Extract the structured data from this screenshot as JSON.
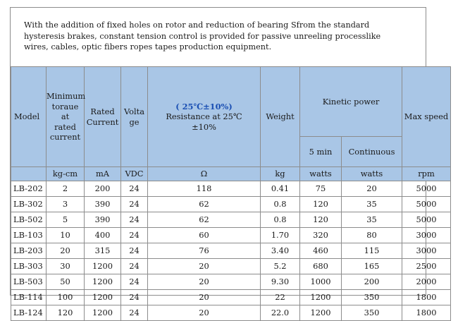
{
  "intro": {
    "line1": "With the addition of fixed holes on rotor and reduction of bearing Sfrom the standard",
    "line2": "hysteresis brakes, constant tension control is provided for passive unreeling processlike",
    "line3": "wires, cables, optic fibers ropes tapes production  equipment."
  },
  "headers": {
    "model": "Model",
    "min_torque_l1": "Minimum",
    "min_torque_l2": "toraue",
    "min_torque_l3": "at",
    "min_torque_l4": "rated",
    "min_torque_l5": "current",
    "rated_current_l1": "Rated",
    "rated_current_l2": "Current",
    "voltage_l1": "Volta",
    "voltage_l2": "ge",
    "resistance_cond": "( 25℃±10%)",
    "resistance_l1": "Resistance at 25℃",
    "resistance_l2": "±10%",
    "weight": "Weight",
    "kinetic_power": "Kinetic power",
    "five_min": "5 min",
    "continuous": "Continuous",
    "max_speed": "Max speed"
  },
  "units": {
    "torque": "kg-cm",
    "current": "mA",
    "voltage": "VDC",
    "resistance": "Ω",
    "weight": "kg",
    "five_min": "watts",
    "continuous": "watts",
    "speed": "rpm"
  },
  "rows": [
    {
      "model": "LB-202",
      "torque": "2",
      "current": "200",
      "voltage": "24",
      "resistance": "118",
      "weight": "0.41",
      "five_min": "75",
      "continuous": "20",
      "speed": "5000"
    },
    {
      "model": "LB-302",
      "torque": "3",
      "current": "390",
      "voltage": "24",
      "resistance": "62",
      "weight": "0.8",
      "five_min": "120",
      "continuous": "35",
      "speed": "5000"
    },
    {
      "model": "LB-502",
      "torque": "5",
      "current": "390",
      "voltage": "24",
      "resistance": "62",
      "weight": "0.8",
      "five_min": "120",
      "continuous": "35",
      "speed": "5000"
    },
    {
      "model": "LB-103",
      "torque": "10",
      "current": "400",
      "voltage": "24",
      "resistance": "60",
      "weight": "1.70",
      "five_min": "320",
      "continuous": "80",
      "speed": "3000"
    },
    {
      "model": "LB-203",
      "torque": "20",
      "current": "315",
      "voltage": "24",
      "resistance": "76",
      "weight": "3.40",
      "five_min": "460",
      "continuous": "115",
      "speed": "3000"
    },
    {
      "model": "LB-303",
      "torque": "30",
      "current": "1200",
      "voltage": "24",
      "resistance": "20",
      "weight": "5.2",
      "five_min": "680",
      "continuous": "165",
      "speed": "2500"
    },
    {
      "model": "LB-503",
      "torque": "50",
      "current": "1200",
      "voltage": "24",
      "resistance": "20",
      "weight": "9.30",
      "five_min": "1000",
      "continuous": "200",
      "speed": "2000"
    },
    {
      "model": "LB-114",
      "torque": "100",
      "current": "1200",
      "voltage": "24",
      "resistance": "20",
      "weight": "22",
      "five_min": "1200",
      "continuous": "350",
      "speed": "1800"
    },
    {
      "model": "LB-124",
      "torque": "120",
      "current": "1200",
      "voltage": "24",
      "resistance": "20",
      "weight": "22.0",
      "five_min": "1200",
      "continuous": "350",
      "speed": "1800"
    }
  ]
}
